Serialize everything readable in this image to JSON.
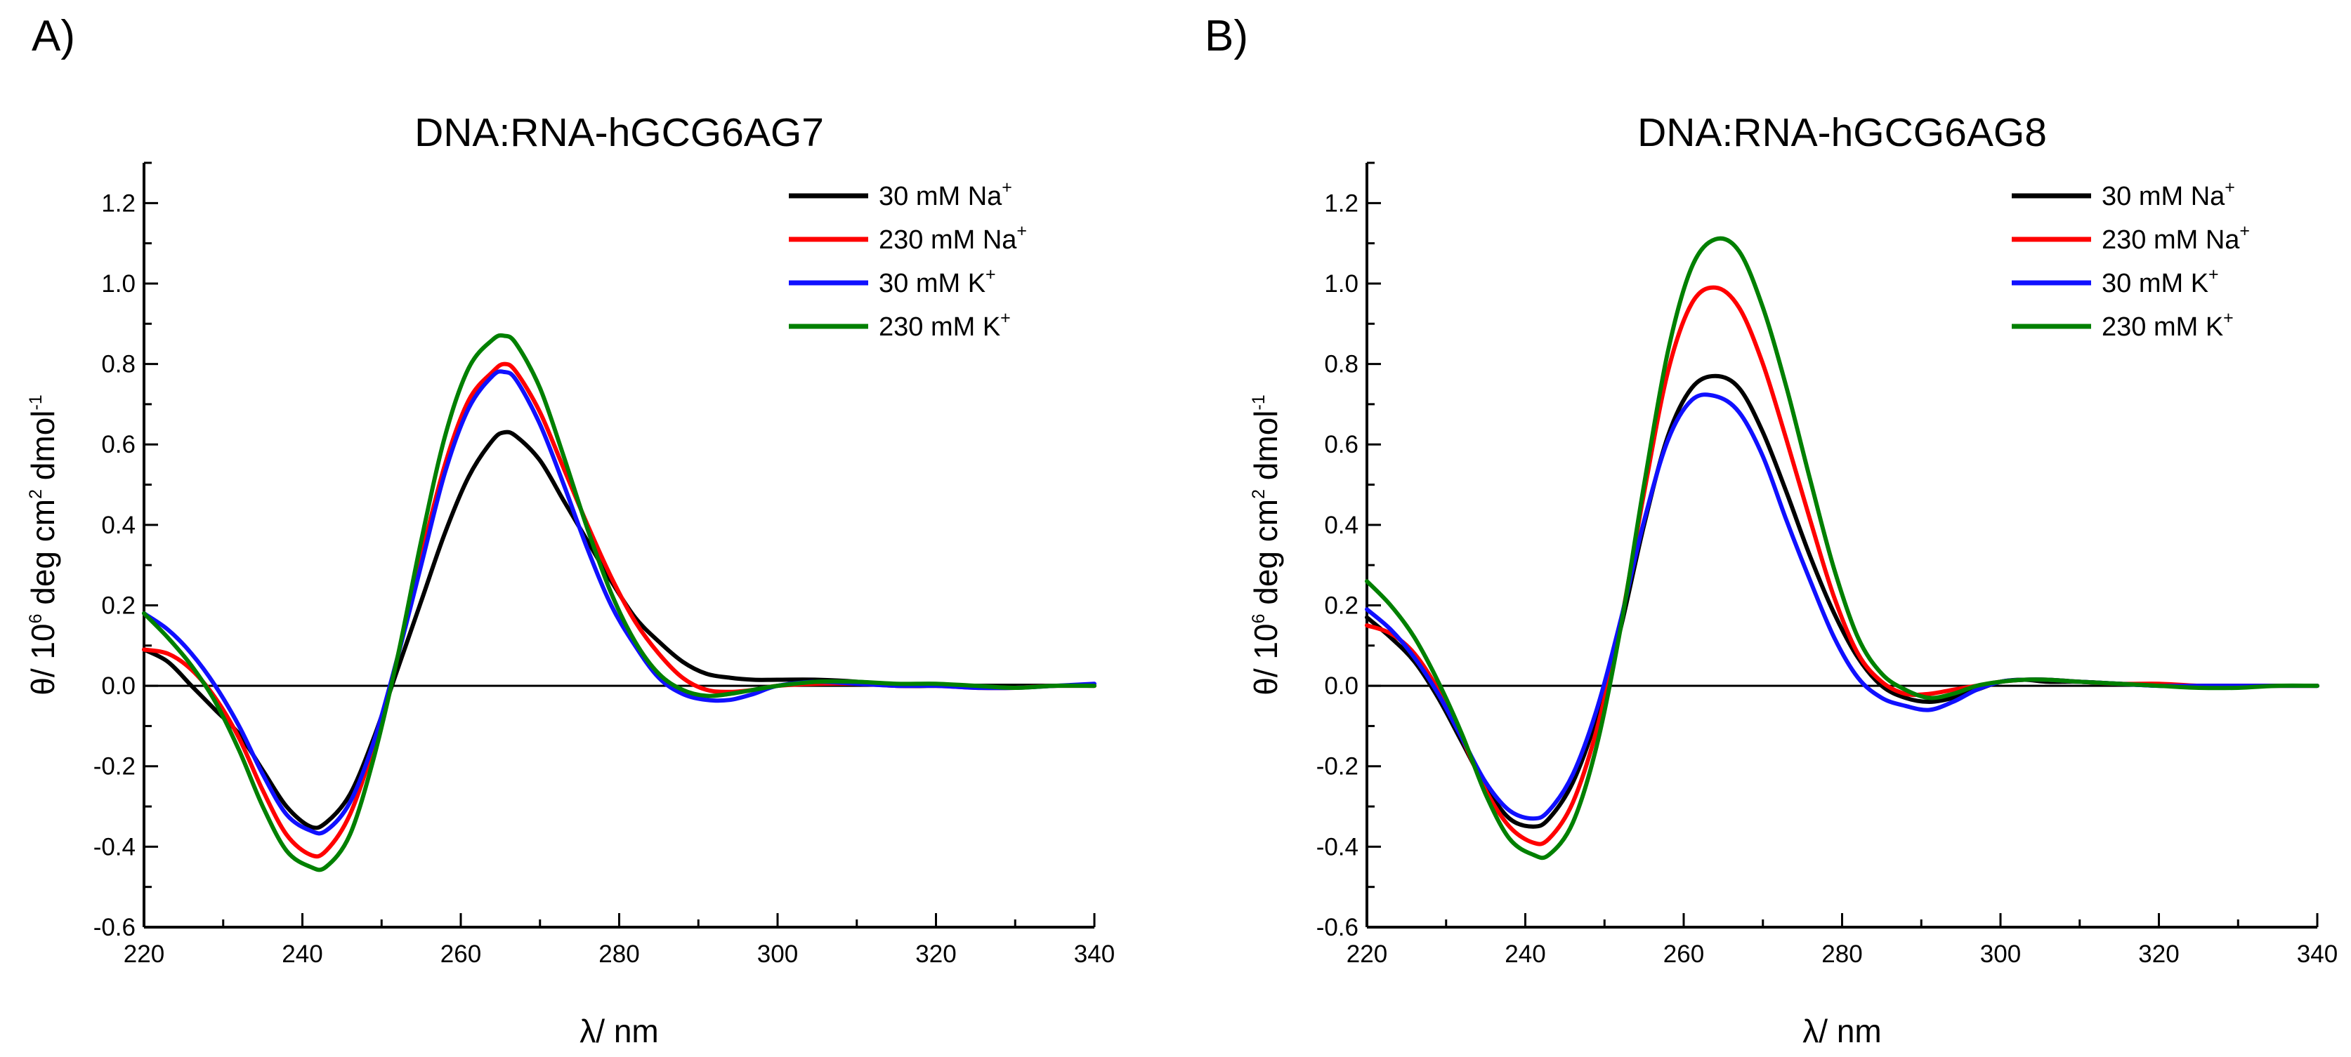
{
  "colors": {
    "na30": "#000000",
    "na230": "#ff0000",
    "k30": "#1010ff",
    "k230": "#008000"
  },
  "chart_data": [
    {
      "panel": "A)",
      "type": "line",
      "title": "DNA:RNA-hGCG6AG7",
      "xlabel": "λ/ nm",
      "ylabel": {
        "prefix": "θ/ 10",
        "exp1": "6",
        "middle": " deg cm",
        "exp2": "2",
        "suffix": " dmol",
        "exp3": "-1"
      },
      "xlim": [
        220,
        340
      ],
      "ylim": [
        -0.6,
        1.3
      ],
      "xticks": [
        "220",
        "240",
        "260",
        "280",
        "300",
        "320",
        "340"
      ],
      "yticks": [
        "-0.6",
        "-0.4",
        "-0.2",
        "0.0",
        "0.2",
        "0.4",
        "0.6",
        "0.8",
        "1.0",
        "1.2"
      ],
      "legend_position": "top-right",
      "series": [
        {
          "key": "na30",
          "legend": {
            "base": "30 mM Na",
            "sup": "+"
          },
          "x": [
            220,
            223,
            226,
            229,
            232,
            235,
            238,
            241,
            243,
            246,
            249,
            252,
            255,
            258,
            261,
            264,
            265.5,
            267,
            270,
            273,
            276,
            279,
            282,
            285,
            288,
            291,
            294,
            297,
            300,
            305,
            310,
            315,
            320,
            325,
            330,
            335,
            340
          ],
          "y": [
            0.09,
            0.06,
            0.0,
            -0.06,
            -0.12,
            -0.21,
            -0.3,
            -0.35,
            -0.34,
            -0.27,
            -0.13,
            0.04,
            0.21,
            0.38,
            0.52,
            0.61,
            0.63,
            0.62,
            0.56,
            0.46,
            0.36,
            0.26,
            0.17,
            0.11,
            0.06,
            0.03,
            0.02,
            0.015,
            0.015,
            0.015,
            0.01,
            0.0,
            0.0,
            0.0,
            0.0,
            0.0,
            0.0
          ]
        },
        {
          "key": "na230",
          "legend": {
            "base": "230 mM Na",
            "sup": "+"
          },
          "x": [
            220,
            223,
            226,
            229,
            232,
            235,
            238,
            241,
            243,
            246,
            249,
            252,
            255,
            258,
            261,
            264,
            265.5,
            267,
            270,
            273,
            276,
            279,
            282,
            285,
            288,
            291,
            294,
            297,
            300,
            305,
            310,
            315,
            320,
            325,
            330,
            335,
            340
          ],
          "y": [
            0.09,
            0.08,
            0.04,
            -0.03,
            -0.13,
            -0.26,
            -0.37,
            -0.42,
            -0.41,
            -0.32,
            -0.15,
            0.07,
            0.32,
            0.55,
            0.71,
            0.78,
            0.8,
            0.78,
            0.68,
            0.54,
            0.4,
            0.27,
            0.16,
            0.08,
            0.02,
            -0.01,
            -0.015,
            -0.01,
            0.0,
            0.005,
            0.005,
            0.0,
            0.0,
            -0.005,
            -0.005,
            0.0,
            0.0
          ]
        },
        {
          "key": "k30",
          "legend": {
            "base": "30 mM K",
            "sup": "+"
          },
          "x": [
            220,
            223,
            226,
            229,
            232,
            235,
            238,
            241,
            243,
            246,
            249,
            252,
            255,
            258,
            261,
            264,
            265.5,
            267,
            270,
            273,
            276,
            279,
            282,
            285,
            288,
            291,
            294,
            297,
            300,
            305,
            310,
            315,
            320,
            325,
            330,
            335,
            340
          ],
          "y": [
            0.18,
            0.14,
            0.08,
            0.0,
            -0.1,
            -0.22,
            -0.32,
            -0.36,
            -0.36,
            -0.29,
            -0.14,
            0.07,
            0.3,
            0.53,
            0.69,
            0.77,
            0.78,
            0.76,
            0.65,
            0.5,
            0.34,
            0.2,
            0.1,
            0.02,
            -0.02,
            -0.035,
            -0.035,
            -0.02,
            0.0,
            0.01,
            0.005,
            0.0,
            0.0,
            -0.005,
            -0.005,
            0.0,
            0.005
          ]
        },
        {
          "key": "k230",
          "legend": {
            "base": "230 mM K",
            "sup": "+"
          },
          "x": [
            220,
            223,
            226,
            229,
            232,
            235,
            238,
            241,
            243,
            246,
            249,
            252,
            255,
            258,
            261,
            264,
            265.5,
            267,
            270,
            273,
            276,
            279,
            282,
            285,
            288,
            291,
            294,
            297,
            300,
            305,
            310,
            315,
            320,
            325,
            330,
            335,
            340
          ],
          "y": [
            0.18,
            0.12,
            0.05,
            -0.04,
            -0.16,
            -0.3,
            -0.41,
            -0.45,
            -0.45,
            -0.37,
            -0.18,
            0.07,
            0.36,
            0.62,
            0.79,
            0.86,
            0.87,
            0.85,
            0.74,
            0.57,
            0.39,
            0.23,
            0.11,
            0.03,
            -0.01,
            -0.025,
            -0.02,
            -0.01,
            0.0,
            0.01,
            0.01,
            0.005,
            0.005,
            0.0,
            -0.005,
            0.0,
            0.0
          ]
        }
      ]
    },
    {
      "panel": "B)",
      "type": "line",
      "title": "DNA:RNA-hGCG6AG8",
      "xlabel": "λ/ nm",
      "ylabel": {
        "prefix": "θ/ 10",
        "exp1": "6",
        "middle": " deg cm",
        "exp2": "2",
        "suffix": " dmol",
        "exp3": "-1"
      },
      "xlim": [
        220,
        340
      ],
      "ylim": [
        -0.6,
        1.3
      ],
      "xticks": [
        "220",
        "240",
        "260",
        "280",
        "300",
        "320",
        "340"
      ],
      "yticks": [
        "-0.6",
        "-0.4",
        "-0.2",
        "0.0",
        "0.2",
        "0.4",
        "0.6",
        "0.8",
        "1.0",
        "1.2"
      ],
      "legend_position": "top-right",
      "series": [
        {
          "key": "na30",
          "legend": {
            "base": "30 mM Na",
            "sup": "+"
          },
          "x": [
            220,
            223,
            226,
            229,
            232,
            235,
            238,
            241,
            243,
            246,
            249,
            252,
            255,
            258,
            261,
            264,
            267,
            270,
            273,
            276,
            279,
            282,
            285,
            288,
            291,
            294,
            297,
            300,
            303,
            306,
            310,
            315,
            320,
            325,
            330,
            335,
            340
          ],
          "y": [
            0.17,
            0.12,
            0.06,
            -0.03,
            -0.14,
            -0.25,
            -0.33,
            -0.35,
            -0.33,
            -0.24,
            -0.08,
            0.14,
            0.4,
            0.62,
            0.74,
            0.77,
            0.74,
            0.63,
            0.48,
            0.32,
            0.18,
            0.07,
            0.0,
            -0.03,
            -0.04,
            -0.03,
            -0.01,
            0.01,
            0.015,
            0.01,
            0.01,
            0.005,
            0.0,
            0.0,
            0.0,
            0.0,
            0.0
          ]
        },
        {
          "key": "na230",
          "legend": {
            "base": "230 mM Na",
            "sup": "+"
          },
          "x": [
            220,
            223,
            226,
            229,
            232,
            235,
            238,
            241,
            243,
            246,
            249,
            252,
            255,
            258,
            261,
            264,
            267,
            270,
            273,
            276,
            279,
            282,
            285,
            288,
            291,
            294,
            297,
            300,
            303,
            306,
            310,
            315,
            320,
            325,
            330,
            335,
            340
          ],
          "y": [
            0.15,
            0.13,
            0.08,
            -0.01,
            -0.13,
            -0.26,
            -0.35,
            -0.39,
            -0.38,
            -0.29,
            -0.11,
            0.15,
            0.48,
            0.78,
            0.95,
            0.99,
            0.94,
            0.8,
            0.61,
            0.41,
            0.22,
            0.08,
            0.01,
            -0.02,
            -0.02,
            -0.01,
            0.0,
            0.01,
            0.015,
            0.015,
            0.01,
            0.005,
            0.005,
            0.0,
            0.0,
            0.0,
            0.0
          ]
        },
        {
          "key": "k30",
          "legend": {
            "base": "30 mM K",
            "sup": "+"
          },
          "x": [
            220,
            223,
            226,
            229,
            232,
            235,
            238,
            241,
            243,
            246,
            249,
            252,
            255,
            258,
            261,
            264,
            267,
            270,
            273,
            276,
            279,
            282,
            285,
            288,
            291,
            294,
            297,
            300,
            303,
            306,
            310,
            315,
            320,
            325,
            330,
            335,
            340
          ],
          "y": [
            0.19,
            0.14,
            0.07,
            -0.02,
            -0.13,
            -0.24,
            -0.31,
            -0.33,
            -0.31,
            -0.22,
            -0.06,
            0.16,
            0.41,
            0.61,
            0.71,
            0.72,
            0.68,
            0.57,
            0.41,
            0.26,
            0.12,
            0.02,
            -0.03,
            -0.05,
            -0.06,
            -0.04,
            -0.01,
            0.01,
            0.015,
            0.015,
            0.01,
            0.005,
            0.0,
            0.0,
            0.0,
            0.0,
            0.0
          ]
        },
        {
          "key": "k230",
          "legend": {
            "base": "230 mM K",
            "sup": "+"
          },
          "x": [
            220,
            223,
            226,
            229,
            232,
            235,
            238,
            241,
            243,
            246,
            249,
            252,
            255,
            258,
            261,
            264,
            267,
            270,
            273,
            276,
            279,
            282,
            285,
            288,
            291,
            294,
            297,
            300,
            303,
            306,
            310,
            315,
            320,
            325,
            330,
            335,
            340
          ],
          "y": [
            0.26,
            0.2,
            0.12,
            0.01,
            -0.12,
            -0.27,
            -0.38,
            -0.42,
            -0.42,
            -0.34,
            -0.15,
            0.14,
            0.5,
            0.83,
            1.04,
            1.11,
            1.08,
            0.94,
            0.74,
            0.51,
            0.29,
            0.12,
            0.03,
            -0.01,
            -0.03,
            -0.02,
            0.0,
            0.01,
            0.015,
            0.015,
            0.01,
            0.005,
            0.0,
            -0.005,
            -0.005,
            0.0,
            0.0
          ]
        }
      ]
    }
  ]
}
